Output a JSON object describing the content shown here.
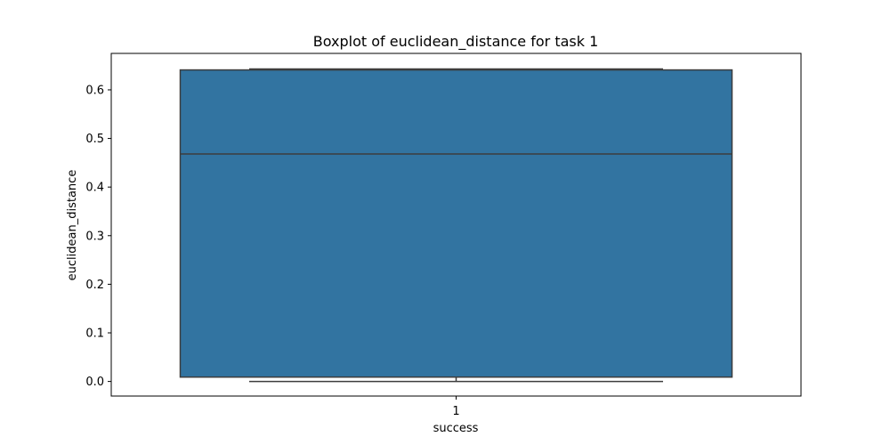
{
  "chart_data": {
    "type": "box",
    "title": "Boxplot of euclidean_distance for task 1",
    "xlabel": "success",
    "ylabel": "euclidean_distance",
    "categories": [
      "1"
    ],
    "boxes": [
      {
        "category": "1",
        "min": 0.0,
        "q1": 0.009,
        "median": 0.468,
        "q3": 0.641,
        "max": 0.643
      }
    ],
    "ylim": [
      -0.03,
      0.675
    ],
    "yticks": [
      0.0,
      0.1,
      0.2,
      0.3,
      0.4,
      0.5,
      0.6
    ],
    "ytick_labels": [
      "0.0",
      "0.1",
      "0.2",
      "0.3",
      "0.4",
      "0.5",
      "0.6"
    ],
    "grid": false,
    "colors": {
      "box_fill": "#3274a1",
      "box_edge": "#3d3d3d"
    }
  }
}
